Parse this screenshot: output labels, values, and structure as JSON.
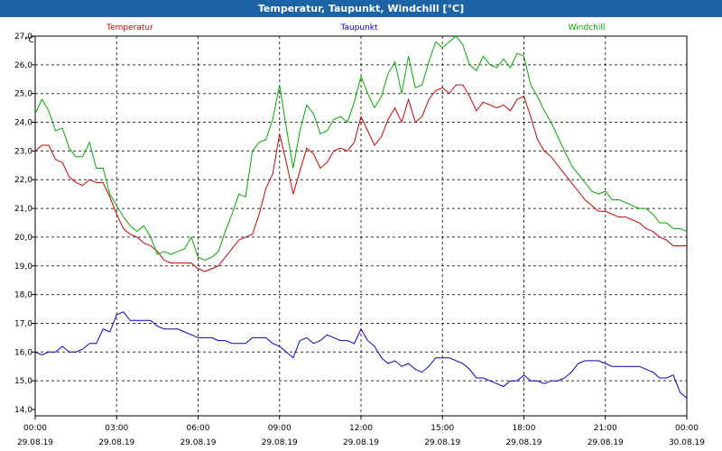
{
  "window": {
    "title": "Temperatur, Taupunkt, Windchill [°C]"
  },
  "colors": {
    "title_bar": "#1d64a6",
    "temperatur": "#cc0000",
    "taupunkt": "#0000cc",
    "windchill": "#00aa00",
    "grid": "#000000"
  },
  "chart_data": {
    "type": "line",
    "title": "Temperatur, Taupunkt, Windchill [°C]",
    "ylabel": "°C",
    "xlabel": "",
    "ylim": [
      14.0,
      27.0
    ],
    "y_ticks": [
      "27,0",
      "26,0",
      "25,0",
      "24,0",
      "23,0",
      "22,0",
      "21,0",
      "20,0",
      "19,0",
      "18,0",
      "17,0",
      "16,0",
      "15,0",
      "14,0"
    ],
    "x_range_hours": [
      0,
      24
    ],
    "x_ticks": [
      {
        "time": "00:00",
        "date": "29.08.19"
      },
      {
        "time": "03:00",
        "date": "29.08.19"
      },
      {
        "time": "06:00",
        "date": "29.08.19"
      },
      {
        "time": "09:00",
        "date": "29.08.19"
      },
      {
        "time": "12:00",
        "date": "29.08.19"
      },
      {
        "time": "15:00",
        "date": "29.08.19"
      },
      {
        "time": "18:00",
        "date": "29.08.19"
      },
      {
        "time": "21:00",
        "date": "29.08.19"
      },
      {
        "time": "00:00",
        "date": "30.08.19"
      }
    ],
    "grid": true,
    "legend_placement": "top",
    "series": [
      {
        "name": "Temperatur",
        "color": "#cc0000",
        "x": [
          0,
          0.25,
          0.5,
          0.75,
          1.0,
          1.25,
          1.5,
          1.75,
          2.0,
          2.25,
          2.5,
          2.75,
          3.0,
          3.25,
          3.5,
          3.75,
          4.0,
          4.25,
          4.5,
          4.75,
          5.0,
          5.25,
          5.5,
          5.75,
          6.0,
          6.25,
          6.5,
          6.75,
          7.0,
          7.25,
          7.5,
          7.75,
          8.0,
          8.25,
          8.5,
          8.75,
          9.0,
          9.25,
          9.5,
          9.75,
          10.0,
          10.25,
          10.5,
          10.75,
          11.0,
          11.25,
          11.5,
          11.75,
          12.0,
          12.25,
          12.5,
          12.75,
          13.0,
          13.25,
          13.5,
          13.75,
          14.0,
          14.25,
          14.5,
          14.75,
          15.0,
          15.25,
          15.5,
          15.75,
          16.0,
          16.25,
          16.5,
          16.75,
          17.0,
          17.25,
          17.5,
          17.75,
          18.0,
          18.25,
          18.5,
          18.75,
          19.0,
          19.25,
          19.5,
          19.75,
          20.0,
          20.25,
          20.5,
          20.75,
          21.0,
          21.25,
          21.5,
          21.75,
          22.0,
          22.25,
          22.5,
          22.75,
          23.0,
          23.25,
          23.5,
          23.75,
          24.0
        ],
        "y": [
          23.0,
          23.2,
          23.2,
          22.7,
          22.6,
          22.1,
          21.9,
          21.8,
          22.0,
          21.9,
          21.9,
          21.4,
          20.8,
          20.3,
          20.1,
          20.0,
          19.8,
          19.7,
          19.5,
          19.2,
          19.1,
          19.1,
          19.1,
          19.1,
          18.9,
          18.8,
          18.9,
          19.0,
          19.3,
          19.6,
          19.9,
          20.0,
          20.1,
          20.8,
          21.7,
          22.2,
          23.6,
          22.6,
          21.5,
          22.3,
          23.1,
          22.9,
          22.4,
          22.6,
          23.0,
          23.1,
          23.0,
          23.3,
          24.2,
          23.7,
          23.2,
          23.5,
          24.1,
          24.5,
          24.0,
          24.8,
          24.0,
          24.2,
          24.8,
          25.1,
          25.2,
          25.0,
          25.3,
          25.3,
          24.9,
          24.4,
          24.7,
          24.6,
          24.5,
          24.6,
          24.4,
          24.8,
          24.9,
          24.2,
          23.4,
          23.0,
          22.8,
          22.5,
          22.2,
          21.9,
          21.6,
          21.3,
          21.1,
          20.9,
          20.9,
          20.8,
          20.7,
          20.7,
          20.6,
          20.5,
          20.3,
          20.2,
          20.0,
          19.9,
          19.7,
          19.7,
          19.7
        ]
      },
      {
        "name": "Taupunkt",
        "color": "#0000cc",
        "x": [
          0,
          0.25,
          0.5,
          0.75,
          1.0,
          1.25,
          1.5,
          1.75,
          2.0,
          2.25,
          2.5,
          2.75,
          3.0,
          3.25,
          3.5,
          3.75,
          4.0,
          4.25,
          4.5,
          4.75,
          5.0,
          5.25,
          5.5,
          5.75,
          6.0,
          6.25,
          6.5,
          6.75,
          7.0,
          7.25,
          7.5,
          7.75,
          8.0,
          8.25,
          8.5,
          8.75,
          9.0,
          9.25,
          9.5,
          9.75,
          10.0,
          10.25,
          10.5,
          10.75,
          11.0,
          11.25,
          11.5,
          11.75,
          12.0,
          12.25,
          12.5,
          12.75,
          13.0,
          13.25,
          13.5,
          13.75,
          14.0,
          14.25,
          14.5,
          14.75,
          15.0,
          15.25,
          15.5,
          15.75,
          16.0,
          16.25,
          16.5,
          16.75,
          17.0,
          17.25,
          17.5,
          17.75,
          18.0,
          18.25,
          18.5,
          18.75,
          19.0,
          19.25,
          19.5,
          19.75,
          20.0,
          20.25,
          20.5,
          20.75,
          21.0,
          21.25,
          21.5,
          21.75,
          22.0,
          22.25,
          22.5,
          22.75,
          23.0,
          23.25,
          23.5,
          23.75,
          24.0
        ],
        "y": [
          16.0,
          15.9,
          16.0,
          16.0,
          16.2,
          16.0,
          16.0,
          16.1,
          16.3,
          16.3,
          16.8,
          16.7,
          17.3,
          17.4,
          17.1,
          17.1,
          17.1,
          17.1,
          16.9,
          16.8,
          16.8,
          16.8,
          16.7,
          16.6,
          16.5,
          16.5,
          16.5,
          16.4,
          16.4,
          16.3,
          16.3,
          16.3,
          16.5,
          16.5,
          16.5,
          16.3,
          16.2,
          16.0,
          15.8,
          16.4,
          16.5,
          16.3,
          16.4,
          16.6,
          16.5,
          16.4,
          16.4,
          16.3,
          16.8,
          16.4,
          16.2,
          15.8,
          15.6,
          15.7,
          15.5,
          15.6,
          15.4,
          15.3,
          15.5,
          15.8,
          15.8,
          15.8,
          15.7,
          15.6,
          15.4,
          15.1,
          15.1,
          15.0,
          14.9,
          14.8,
          15.0,
          15.0,
          15.2,
          15.0,
          15.0,
          14.9,
          15.0,
          15.0,
          15.1,
          15.3,
          15.6,
          15.7,
          15.7,
          15.7,
          15.6,
          15.5,
          15.5,
          15.5,
          15.5,
          15.5,
          15.4,
          15.3,
          15.1,
          15.1,
          15.2,
          14.6,
          14.4
        ]
      },
      {
        "name": "Windchill",
        "color": "#00aa00",
        "x": [
          0,
          0.25,
          0.5,
          0.75,
          1.0,
          1.25,
          1.5,
          1.75,
          2.0,
          2.25,
          2.5,
          2.75,
          3.0,
          3.25,
          3.5,
          3.75,
          4.0,
          4.25,
          4.5,
          4.75,
          5.0,
          5.25,
          5.5,
          5.75,
          6.0,
          6.25,
          6.5,
          6.75,
          7.0,
          7.25,
          7.5,
          7.75,
          8.0,
          8.25,
          8.5,
          8.75,
          9.0,
          9.25,
          9.5,
          9.75,
          10.0,
          10.25,
          10.5,
          10.75,
          11.0,
          11.25,
          11.5,
          11.75,
          12.0,
          12.25,
          12.5,
          12.75,
          13.0,
          13.25,
          13.5,
          13.75,
          14.0,
          14.25,
          14.5,
          14.75,
          15.0,
          15.25,
          15.5,
          15.75,
          16.0,
          16.25,
          16.5,
          16.75,
          17.0,
          17.25,
          17.5,
          17.75,
          18.0,
          18.25,
          18.5,
          18.75,
          19.0,
          19.25,
          19.5,
          19.75,
          20.0,
          20.25,
          20.5,
          20.75,
          21.0,
          21.25,
          21.5,
          21.75,
          22.0,
          22.25,
          22.5,
          22.75,
          23.0,
          23.25,
          23.5,
          23.75,
          24.0
        ],
        "y": [
          24.3,
          24.8,
          24.4,
          23.7,
          23.8,
          23.1,
          22.8,
          22.8,
          23.3,
          22.4,
          22.4,
          21.5,
          21.1,
          20.7,
          20.4,
          20.2,
          20.4,
          20.0,
          19.4,
          19.5,
          19.4,
          19.5,
          19.6,
          20.0,
          19.3,
          19.2,
          19.3,
          19.5,
          20.2,
          20.8,
          21.5,
          21.4,
          23.0,
          23.3,
          23.4,
          24.1,
          25.3,
          23.8,
          22.4,
          23.7,
          24.6,
          24.3,
          23.6,
          23.7,
          24.1,
          24.2,
          24.0,
          24.7,
          25.6,
          25.0,
          24.5,
          24.9,
          25.7,
          26.1,
          25.0,
          26.3,
          25.2,
          25.3,
          26.1,
          26.8,
          26.6,
          26.8,
          27.0,
          26.7,
          26.0,
          25.8,
          26.3,
          26.0,
          25.9,
          26.2,
          25.9,
          26.4,
          26.3,
          25.3,
          24.9,
          24.4,
          24.0,
          23.5,
          23.0,
          22.5,
          22.2,
          21.9,
          21.6,
          21.5,
          21.6,
          21.3,
          21.3,
          21.2,
          21.1,
          21.0,
          21.0,
          20.8,
          20.5,
          20.5,
          20.3,
          20.3,
          20.2
        ]
      }
    ]
  }
}
